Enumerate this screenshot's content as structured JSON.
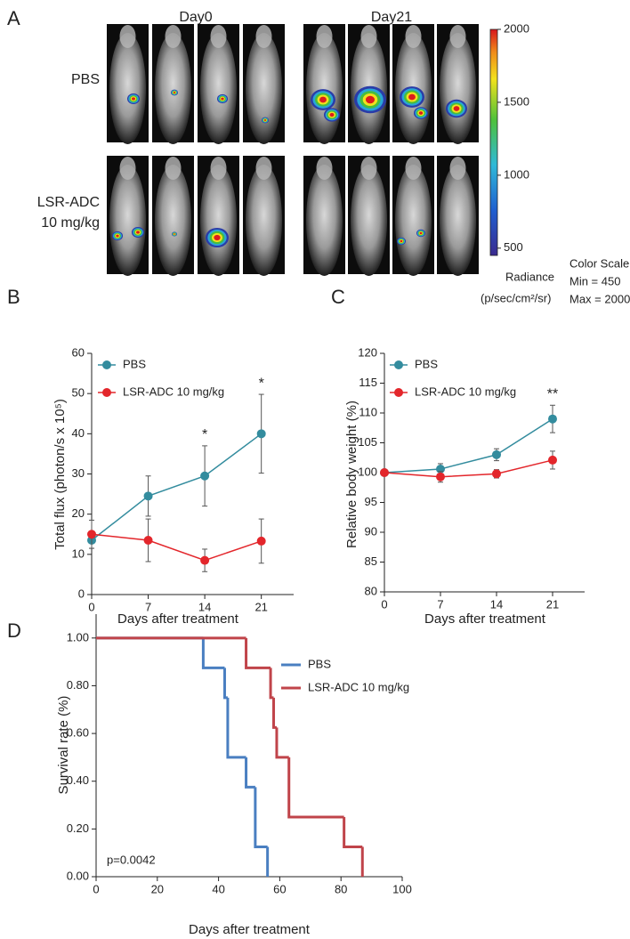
{
  "panel_a": {
    "label": "A",
    "columns": [
      "Day0",
      "Day21"
    ],
    "rows": [
      [
        "PBS"
      ],
      [
        "LSR-ADC",
        "10 mg/kg"
      ]
    ],
    "colorbar": {
      "ylim": [
        450,
        2000
      ],
      "yticks": [
        500,
        1000,
        1500,
        2000
      ],
      "title": [
        "Radiance",
        "(p/sec/cm²/sr)"
      ]
    },
    "color_scale": [
      "Color Scale",
      "Min = 450",
      "Max = 2000"
    ]
  },
  "chart_data": [
    {
      "type": "line",
      "label": "B",
      "x_label": "Days after treatment",
      "y_label": "Total flux (photon/s x 10⁵)",
      "xlim": [
        0,
        25
      ],
      "xticks": [
        0,
        7,
        14,
        21
      ],
      "ylim": [
        0,
        60
      ],
      "yticks": [
        0,
        10,
        20,
        30,
        40,
        50,
        60
      ],
      "legend": "upper left",
      "x": [
        0,
        7,
        14,
        21
      ],
      "series": [
        {
          "name": "PBS",
          "color": "#338c9e",
          "values": [
            13.5,
            24.5,
            29.5,
            40
          ],
          "errors": [
            2,
            5,
            7.5,
            9.8
          ]
        },
        {
          "name": "LSR-ADC 10 mg/kg",
          "color": "#e3262b",
          "values": [
            15,
            13.5,
            8.5,
            13.3
          ],
          "errors": [
            3.5,
            5.3,
            2.8,
            5.5
          ]
        }
      ],
      "annotations": [
        {
          "text": "*",
          "x": 14
        },
        {
          "text": "*",
          "x": 21
        }
      ]
    },
    {
      "type": "line",
      "label": "C",
      "x_label": "Days after treatment",
      "y_label": "Relative body weight (%)",
      "xlim": [
        0,
        25
      ],
      "xticks": [
        0,
        7,
        14,
        21
      ],
      "ylim": [
        80,
        120
      ],
      "yticks": [
        80,
        85,
        90,
        95,
        100,
        105,
        110,
        115,
        120
      ],
      "legend": "upper left",
      "x": [
        0,
        7,
        14,
        21
      ],
      "series": [
        {
          "name": "PBS",
          "color": "#338c9e",
          "values": [
            100,
            100.6,
            103,
            109
          ],
          "errors": [
            0.2,
            0.9,
            1,
            2.3
          ]
        },
        {
          "name": "LSR-ADC 10 mg/kg",
          "color": "#e3262b",
          "values": [
            100,
            99.3,
            99.8,
            102.1
          ],
          "errors": [
            0.2,
            0.9,
            0.7,
            1.5
          ]
        }
      ],
      "annotations": [
        {
          "text": "**",
          "x": 21
        }
      ]
    },
    {
      "type": "step",
      "label": "D",
      "x_label": "Days after treatment",
      "y_label": "Survival rate (%)",
      "xlim": [
        0,
        100
      ],
      "xticks": [
        0,
        20,
        40,
        60,
        80,
        100
      ],
      "ylim": [
        0,
        1.1
      ],
      "yticks": [
        {
          "value": 0,
          "label": "0.00"
        },
        {
          "value": 0.2,
          "label": "0.20"
        },
        {
          "value": 0.4,
          "label": "0.40"
        },
        {
          "value": 0.6,
          "label": "0.60"
        },
        {
          "value": 0.8,
          "label": "0.80"
        },
        {
          "value": 1,
          "label": "1.00"
        }
      ],
      "legend": "upper right",
      "series": [
        {
          "name": "PBS",
          "color": "#4a7fc1",
          "x": [
            0,
            35,
            42,
            43,
            49,
            52,
            56
          ],
          "values": [
            1,
            0.875,
            0.75,
            0.5,
            0.375,
            0.125,
            0
          ]
        },
        {
          "name": "LSR-ADC 10 mg/kg",
          "color": "#c0444a",
          "x": [
            0,
            49,
            57,
            58,
            59,
            63,
            81,
            87
          ],
          "values": [
            1,
            0.875,
            0.75,
            0.625,
            0.5,
            0.25,
            0.125,
            0
          ]
        }
      ],
      "annotation": "p=0.0042"
    }
  ]
}
